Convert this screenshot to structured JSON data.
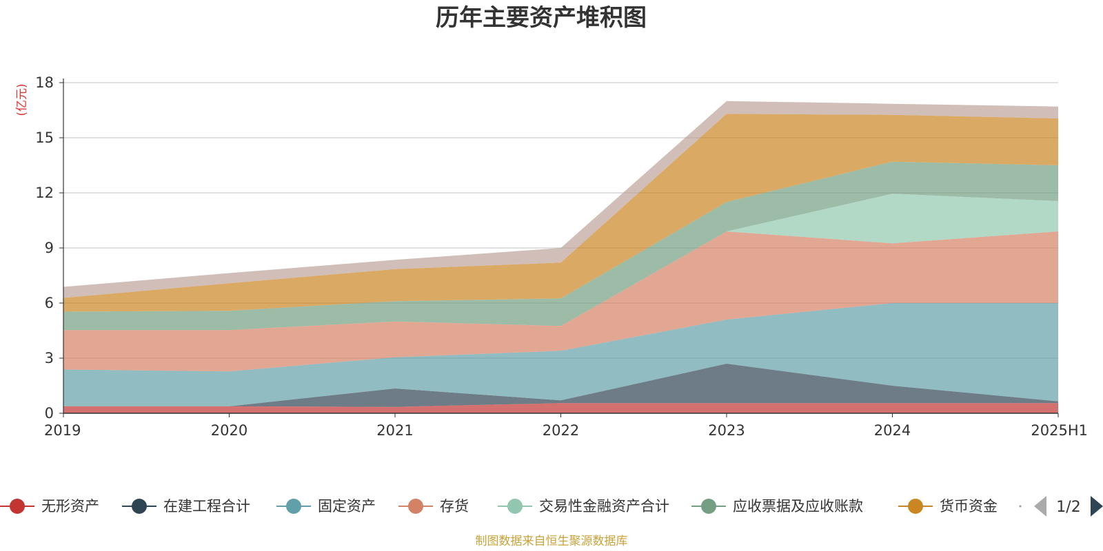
{
  "chart_data": {
    "type": "area",
    "stacked": true,
    "title": "历年主要资产堆积图",
    "unit_label": "(亿元)",
    "x": [
      "2019",
      "2020",
      "2021",
      "2022",
      "2023",
      "2024",
      "2025H1"
    ],
    "ylim": [
      0,
      18
    ],
    "yticks": [
      0,
      3,
      6,
      9,
      12,
      15,
      18
    ],
    "grid": true,
    "series": [
      {
        "name": "无形资产",
        "color": "#c23531",
        "values": [
          0.38,
          0.38,
          0.35,
          0.55,
          0.55,
          0.55,
          0.55
        ]
      },
      {
        "name": "在建工程合计",
        "color": "#2f4554",
        "values": [
          0.0,
          0.0,
          1.0,
          0.15,
          2.15,
          0.95,
          0.1
        ]
      },
      {
        "name": "固定资产",
        "color": "#61a0a8",
        "values": [
          2.0,
          1.9,
          1.7,
          2.7,
          2.4,
          4.5,
          5.35
        ]
      },
      {
        "name": "存货",
        "color": "#d48265",
        "values": [
          2.15,
          2.25,
          1.95,
          1.35,
          4.8,
          3.25,
          3.9
        ]
      },
      {
        "name": "交易性金融资产合计",
        "color": "#91c7ae",
        "values": [
          0.0,
          0.0,
          0.0,
          0.0,
          0.0,
          2.7,
          1.65
        ]
      },
      {
        "name": "应收票据及应收账款",
        "color": "#749f83",
        "values": [
          1.0,
          1.05,
          1.1,
          1.5,
          1.6,
          1.75,
          1.95
        ]
      },
      {
        "name": "货币资金",
        "color": "#ca8622",
        "values": [
          0.75,
          1.5,
          1.75,
          1.95,
          4.8,
          2.55,
          2.55
        ]
      },
      {
        "name": "",
        "color": "#bda29a",
        "values": [
          0.6,
          0.55,
          0.5,
          0.8,
          0.7,
          0.6,
          0.65
        ]
      }
    ],
    "legend": {
      "placement": "bottom",
      "page": "1/2",
      "visible_items": [
        "无形资产",
        "在建工程合计",
        "固定资产",
        "存货",
        "交易性金融资产合计",
        "应收票据及应收账款",
        "货币资金"
      ]
    },
    "source_note": "制图数据来自恒生聚源数据库"
  }
}
